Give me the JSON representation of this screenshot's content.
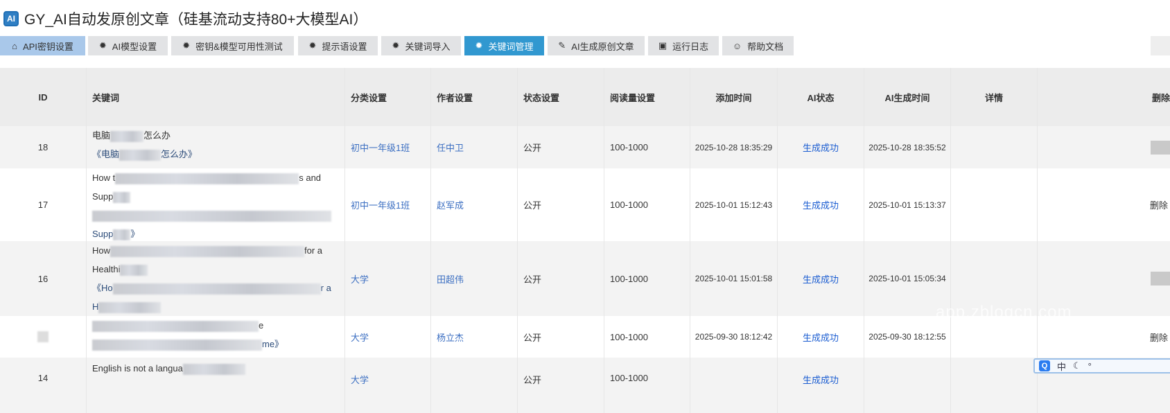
{
  "app": {
    "logo_text": "AI",
    "title": "GY_AI自动发原创文章（硅基流动支持80+大模型AI）"
  },
  "tabs": [
    {
      "label": "API密钥设置",
      "icon": "home-icon"
    },
    {
      "label": "AI模型设置",
      "icon": "gear-icon"
    },
    {
      "label": "密钥&模型可用性测试",
      "icon": "gear-icon"
    },
    {
      "label": "提示语设置",
      "icon": "gear-icon"
    },
    {
      "label": "关键词导入",
      "icon": "gear-icon"
    },
    {
      "label": "关键词管理",
      "icon": "gear-icon",
      "active": true
    },
    {
      "label": "AI生成原创文章",
      "icon": "pen-icon"
    },
    {
      "label": "运行日志",
      "icon": "log-icon"
    },
    {
      "label": "帮助文档",
      "icon": "smile-icon"
    }
  ],
  "table": {
    "headers": [
      "ID",
      "关键词",
      "分类设置",
      "作者设置",
      "状态设置",
      "阅读量设置",
      "添加时间",
      "AI状态",
      "AI生成时间",
      "详情",
      "删除"
    ],
    "rows": [
      {
        "id": "18",
        "kw1": "电脑",
        "kw1b": "怎么办",
        "kw2": "《电脑",
        "kw2b": "怎么办》",
        "category": "初中一年级1班",
        "author": "任中卫",
        "status": "公开",
        "reads": "100-1000",
        "added": "2025-10-28 18:35:29",
        "ai_status": "生成成功",
        "ai_time": "2025-10-28 18:35:52",
        "delete": ""
      },
      {
        "id": "17",
        "kw1": "How t",
        "kw1b": "s and",
        "kw1c": "Supp",
        "kw2": "",
        "kw2c": "Supp",
        "kw2d": "》",
        "category": "初中一年级1班",
        "author": "赵军成",
        "status": "公开",
        "reads": "100-1000",
        "added": "2025-10-01 15:12:43",
        "ai_status": "生成成功",
        "ai_time": "2025-10-01 15:13:37",
        "delete": "删除"
      },
      {
        "id": "16",
        "kw1": "How",
        "kw1b": "for a",
        "kw1c": "Healthi",
        "kw2": "《Ho",
        "kw2b": "r a",
        "kw2c": "H",
        "category": "大学",
        "author": "田超伟",
        "status": "公开",
        "reads": "100-1000",
        "added": "2025-10-01 15:01:58",
        "ai_status": "生成成功",
        "ai_time": "2025-10-01 15:05:34",
        "delete": ""
      },
      {
        "id": "",
        "kw1": "",
        "kw1b": "e",
        "kw2": "",
        "kw2b": "me》",
        "category": "大学",
        "author": "杨立杰",
        "status": "公开",
        "reads": "100-1000",
        "added": "2025-09-30 18:12:42",
        "ai_status": "生成成功",
        "ai_time": "2025-09-30 18:12:55",
        "delete": "删除"
      },
      {
        "id": "14",
        "kw1": "English is not a langua",
        "category": "大学",
        "author": "",
        "status": "公开",
        "reads": "100-1000",
        "added": "",
        "ai_status": "生成成功",
        "ai_time": "",
        "delete": ""
      }
    ]
  },
  "watermark": "app.zblogcn.com",
  "ime": {
    "lang": "中",
    "logo": "Q"
  }
}
